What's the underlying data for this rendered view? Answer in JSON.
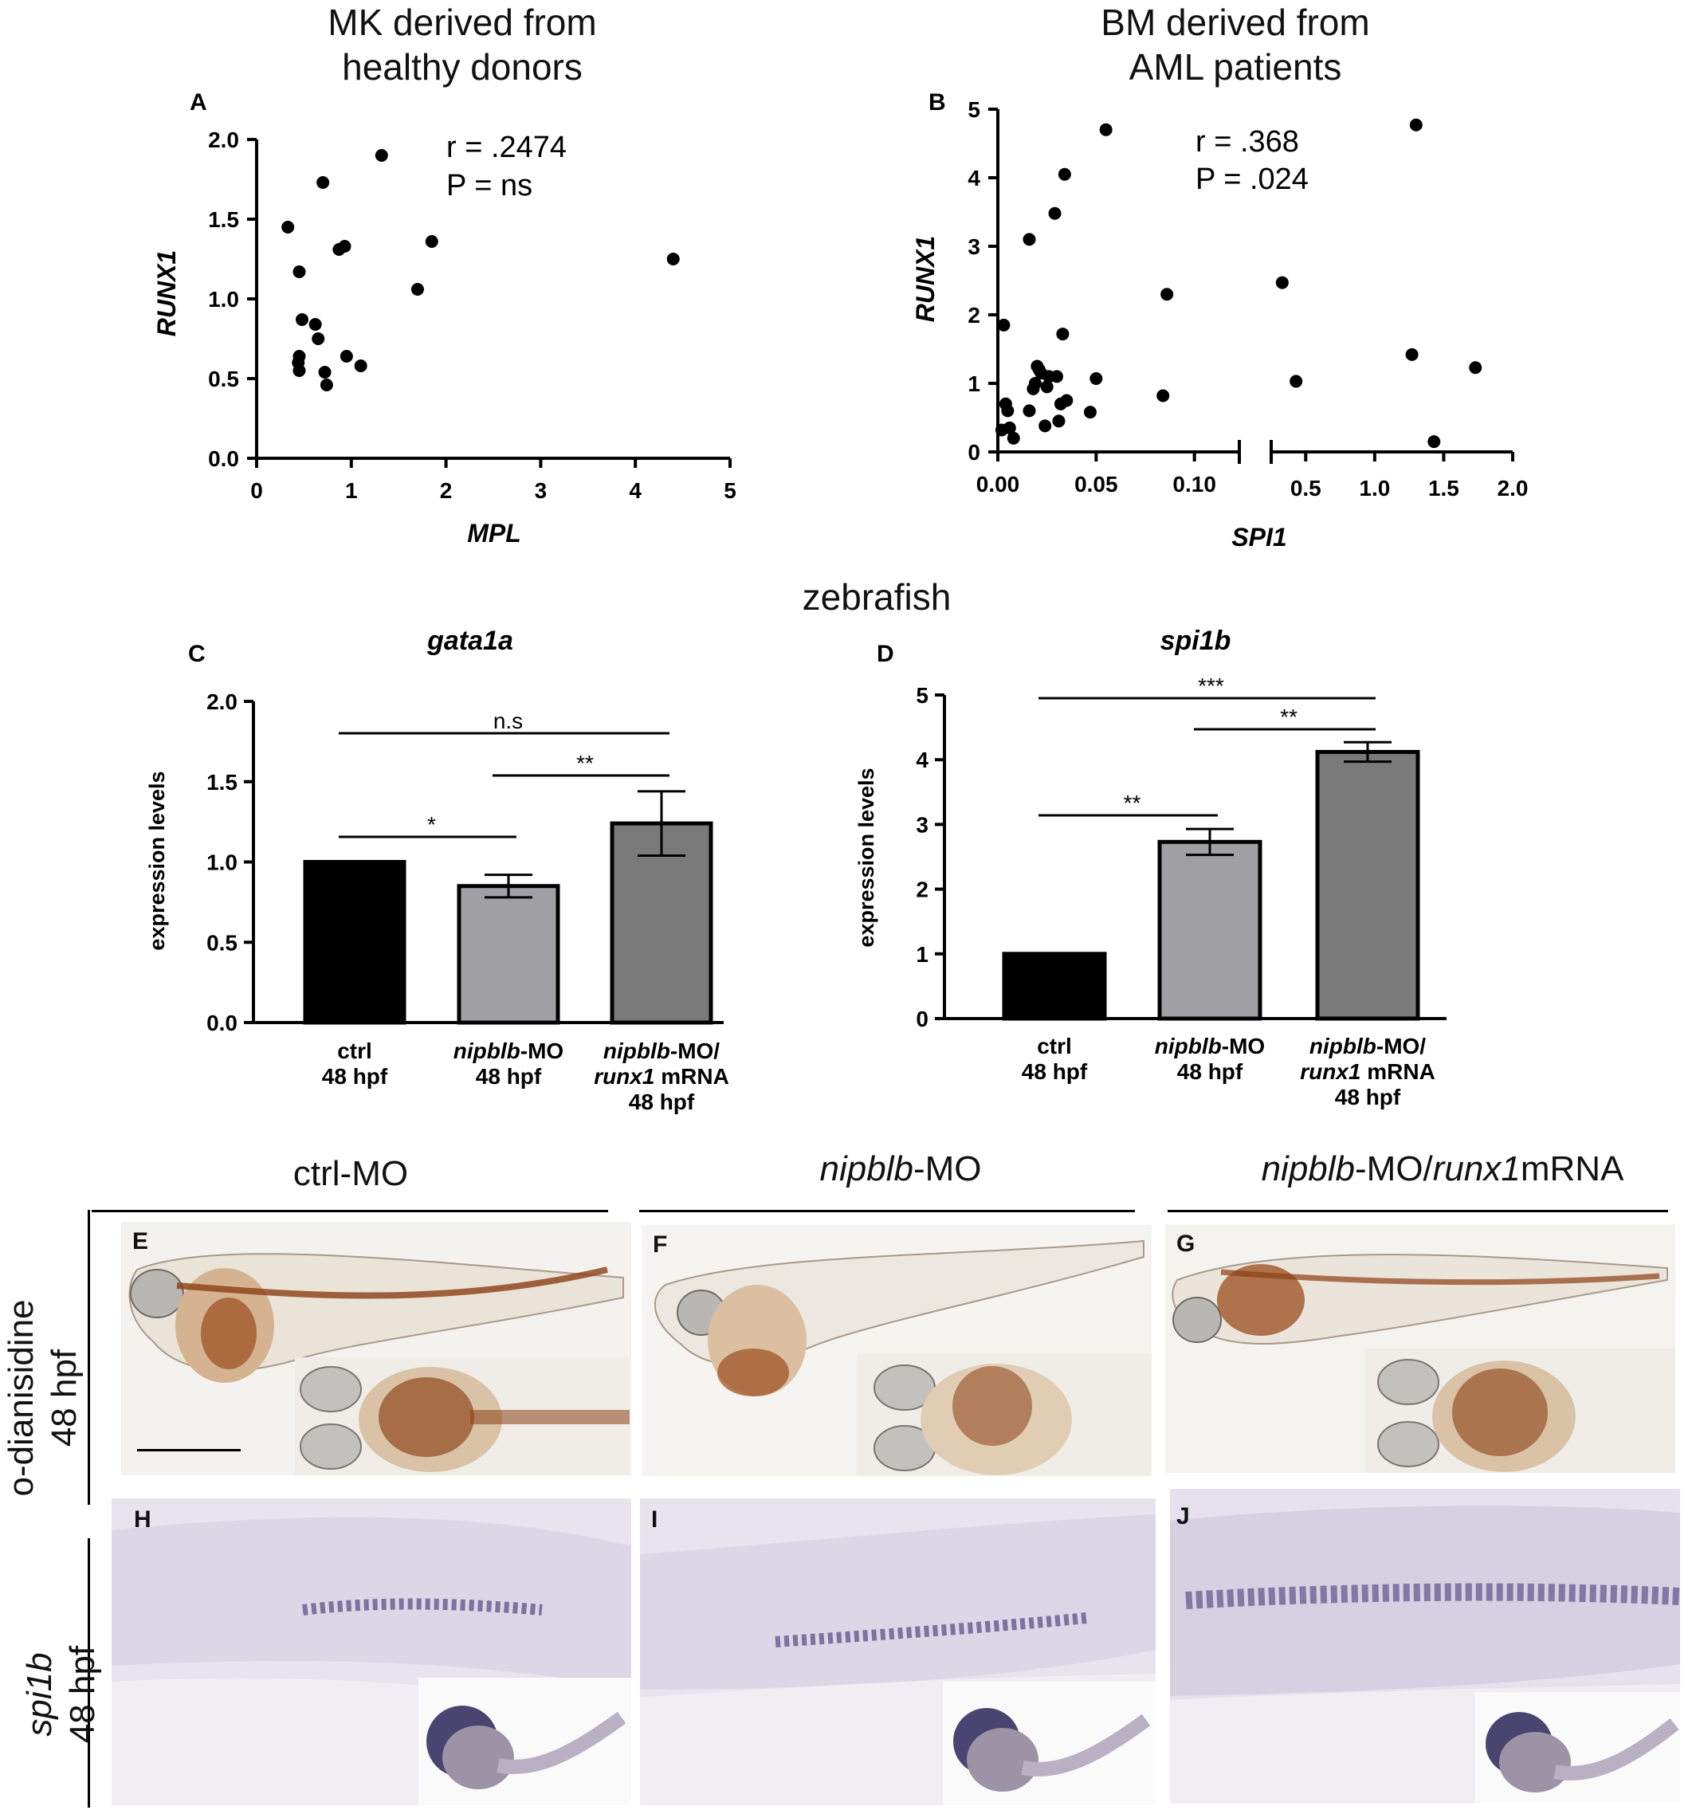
{
  "headers": {
    "a_title": "MK derived from\nhealthy donors",
    "b_title": "BM derived from\nAML patients",
    "zebrafish": "zebrafish"
  },
  "panels": {
    "A": "A",
    "B": "B",
    "C": "C",
    "D": "D",
    "E": "E",
    "F": "F",
    "G": "G",
    "H": "H",
    "I": "I",
    "J": "J"
  },
  "stats": {
    "a_r": "r = .2474",
    "a_p": "P = ns",
    "b_r": "r = .368",
    "b_p": "P = .024"
  },
  "chart_data": [
    {
      "type": "scatter",
      "panel": "A",
      "xlabel": "MPL",
      "ylabel": "RUNX1",
      "xlim": [
        0,
        5
      ],
      "ylim": [
        0,
        2.0
      ],
      "xticks": [
        "0",
        "1",
        "2",
        "3",
        "4",
        "5"
      ],
      "yticks": [
        "0.0",
        "0.5",
        "1.0",
        "1.5",
        "2.0"
      ],
      "points": [
        [
          0.33,
          1.45
        ],
        [
          0.45,
          1.17
        ],
        [
          0.48,
          0.87
        ],
        [
          0.45,
          0.64
        ],
        [
          0.44,
          0.6
        ],
        [
          0.45,
          0.55
        ],
        [
          0.62,
          0.84
        ],
        [
          0.65,
          0.75
        ],
        [
          0.7,
          1.73
        ],
        [
          0.72,
          0.54
        ],
        [
          0.74,
          0.46
        ],
        [
          0.87,
          1.31
        ],
        [
          0.93,
          1.33
        ],
        [
          0.95,
          0.64
        ],
        [
          1.1,
          0.58
        ],
        [
          1.32,
          1.9
        ],
        [
          1.7,
          1.06
        ],
        [
          1.85,
          1.36
        ],
        [
          4.4,
          1.25
        ]
      ]
    },
    {
      "type": "scatter",
      "panel": "B",
      "xlabel": "SPI1",
      "ylabel": "RUNX1",
      "broken_x_axis": true,
      "x_left_range": [
        0,
        0.12
      ],
      "x_right_range": [
        0.25,
        2.0
      ],
      "ylim": [
        0,
        5
      ],
      "xticks_left": [
        "0.00",
        "0.05",
        "0.10"
      ],
      "xticks_right": [
        "0.5",
        "1.0",
        "1.5",
        "2.0"
      ],
      "yticks": [
        "0",
        "1",
        "2",
        "3",
        "4",
        "5"
      ],
      "points_left": [
        [
          0.002,
          0.32
        ],
        [
          0.003,
          1.85
        ],
        [
          0.004,
          0.7
        ],
        [
          0.005,
          0.6
        ],
        [
          0.006,
          0.35
        ],
        [
          0.008,
          0.2
        ],
        [
          0.016,
          3.1
        ],
        [
          0.016,
          0.6
        ],
        [
          0.018,
          0.92
        ],
        [
          0.019,
          1.0
        ],
        [
          0.02,
          1.25
        ],
        [
          0.021,
          1.2
        ],
        [
          0.022,
          1.15
        ],
        [
          0.024,
          0.38
        ],
        [
          0.025,
          0.95
        ],
        [
          0.026,
          1.1
        ],
        [
          0.029,
          3.48
        ],
        [
          0.03,
          1.1
        ],
        [
          0.031,
          0.45
        ],
        [
          0.032,
          0.7
        ],
        [
          0.033,
          1.72
        ],
        [
          0.034,
          4.05
        ],
        [
          0.035,
          0.75
        ],
        [
          0.047,
          0.58
        ],
        [
          0.05,
          1.07
        ],
        [
          0.055,
          4.7
        ],
        [
          0.084,
          0.82
        ],
        [
          0.086,
          2.3
        ]
      ],
      "points_right": [
        [
          0.33,
          2.47
        ],
        [
          0.43,
          1.03
        ],
        [
          1.27,
          1.42
        ],
        [
          1.3,
          4.77
        ],
        [
          1.43,
          0.15
        ],
        [
          1.73,
          1.23
        ]
      ]
    },
    {
      "type": "bar",
      "panel": "C",
      "title": "gata1a",
      "ylabel": "expression levels",
      "ylim": [
        0,
        2.0
      ],
      "yticks": [
        "0.0",
        "0.5",
        "1.0",
        "1.5",
        "2.0"
      ],
      "categories": [
        "ctrl 48 hpf",
        "nipblb-MO 48 hpf",
        "nipblb-MO/ runx1 mRNA 48 hpf"
      ],
      "values": [
        1.0,
        0.85,
        1.24
      ],
      "errors": [
        0,
        0.07,
        0.2
      ],
      "colors": [
        "#000000",
        "#a0a0a4",
        "#7a7a7a"
      ],
      "significance": [
        {
          "from": 0,
          "to": 1,
          "label": "*"
        },
        {
          "from": 1,
          "to": 2,
          "label": "**"
        },
        {
          "from": 0,
          "to": 2,
          "label": "n.s"
        }
      ]
    },
    {
      "type": "bar",
      "panel": "D",
      "title": "spi1b",
      "ylabel": "expression levels",
      "ylim": [
        0,
        5
      ],
      "yticks": [
        "0",
        "1",
        "2",
        "3",
        "4",
        "5"
      ],
      "categories": [
        "ctrl 48 hpf",
        "nipblb-MO 48 hpf",
        "nipblb-MO/ runx1 mRNA 48 hpf"
      ],
      "values": [
        1.0,
        2.73,
        4.12
      ],
      "errors": [
        0,
        0.2,
        0.15
      ],
      "colors": [
        "#000000",
        "#a0a0a4",
        "#7a7a7a"
      ],
      "significance": [
        {
          "from": 0,
          "to": 1,
          "label": "**"
        },
        {
          "from": 1,
          "to": 2,
          "label": "**"
        },
        {
          "from": 0,
          "to": 2,
          "label": "***"
        }
      ]
    }
  ],
  "cat_labels": {
    "ctrl": "ctrl",
    "hpf": "48 hpf",
    "mo_it": "nipblb",
    "mo_suffix": "-MO",
    "mo_slash": "-MO/",
    "runx1_it": "runx1",
    "mrna": " mRNA"
  },
  "columns": {
    "col1": "ctrl-MO",
    "col2_it": "nipblb",
    "col2_rest": "-MO",
    "col3_it1": "nipblb",
    "col3_mid": "-MO/",
    "col3_it2": "runx1",
    "col3_rest": "mRNA"
  },
  "rows": {
    "row1": "o-dianisidine\n48 hpf",
    "row2_it": "spi1b",
    "row2_rest": "48 hpf"
  },
  "colors": {
    "stain_brown": "#8b3f14",
    "stain_purple": "#3c3170",
    "embryo_bg_purple": "#dcd6e6",
    "tissue_bg": "#f3efe8"
  }
}
